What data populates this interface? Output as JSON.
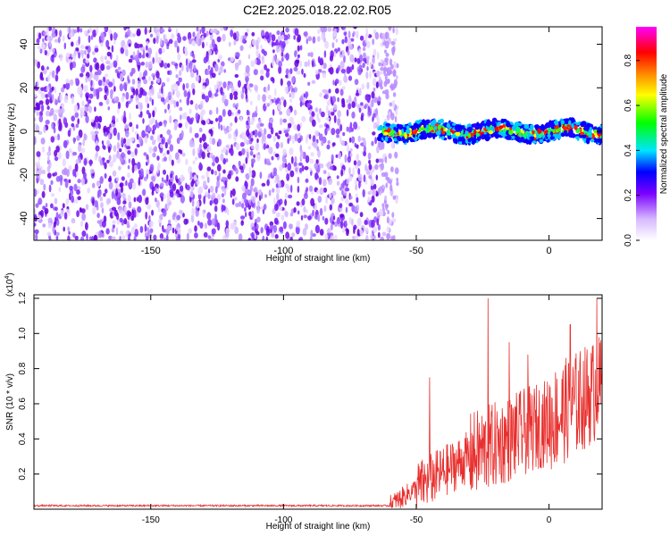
{
  "page": {
    "title": "C2E2.2025.018.22.02.R05"
  },
  "chart_data": [
    {
      "type": "heatmap",
      "title": "",
      "xlabel": "Height of straight line (km)",
      "ylabel": "Frequency (Hz)",
      "xlim": [
        -194,
        20
      ],
      "ylim": [
        -50,
        48
      ],
      "xticks": [
        -150,
        -100,
        -50,
        0
      ],
      "yticks": [
        -40,
        -20,
        0,
        20,
        40
      ],
      "grid": false,
      "colorbar": {
        "label": "Normalized spectral amplitude",
        "ticks": [
          "0.0",
          "0.2",
          "0.4",
          "0.6",
          "0.8"
        ],
        "range": [
          0,
          0.95
        ],
        "colors": [
          "#ffffff",
          "#7a00ff",
          "#0000ff",
          "#00e5ff",
          "#00ff00",
          "#ffff00",
          "#ff8800",
          "#ff0000",
          "#ff00ff"
        ]
      },
      "description_of_field": {
        "noise_region_x": [
          -194,
          -57
        ],
        "signal_band_x": [
          -64,
          20
        ],
        "signal_band_center_freq": 0,
        "signal_band_halfwidth_freq": 4
      }
    },
    {
      "type": "line",
      "title": "",
      "xlabel": "Height of straight line (km)",
      "ylabel": "SNR (10 * v/v)",
      "multiplier_label": "(x10",
      "multiplier_exp": "4",
      "xlim": [
        -194,
        20
      ],
      "ylim": [
        0,
        1.22
      ],
      "xticks": [
        -150,
        -100,
        -50,
        0
      ],
      "yticks": [
        0.2,
        0.4,
        0.6,
        0.8,
        1.0,
        1.2
      ],
      "ytick_labels": [
        "0.2",
        "0.4",
        "0.6",
        "0.8",
        "1.0",
        "1.2"
      ],
      "grid": false,
      "series": [
        {
          "color": "#e8302e",
          "segments": [
            {
              "x": [
                -194,
                -60
              ],
              "level": 0.02,
              "noise": 0.005
            },
            {
              "x": [
                -60,
                -50
              ],
              "level_start": 0.02,
              "level_end": 0.12,
              "noise": 0.06
            },
            {
              "x": [
                -50,
                -30
              ],
              "level_start": 0.12,
              "level_end": 0.3,
              "noise": 0.15
            },
            {
              "x": [
                -30,
                0
              ],
              "level_start": 0.3,
              "level_end": 0.5,
              "noise": 0.25
            },
            {
              "x": [
                0,
                20
              ],
              "level_start": 0.5,
              "level_end": 0.7,
              "noise": 0.3
            }
          ],
          "peaks": [
            [
              -23,
              1.2
            ],
            [
              -45,
              0.75
            ],
            [
              -15,
              0.95
            ],
            [
              8,
              1.05
            ],
            [
              18,
              1.2
            ],
            [
              -8,
              0.88
            ]
          ]
        }
      ]
    }
  ]
}
